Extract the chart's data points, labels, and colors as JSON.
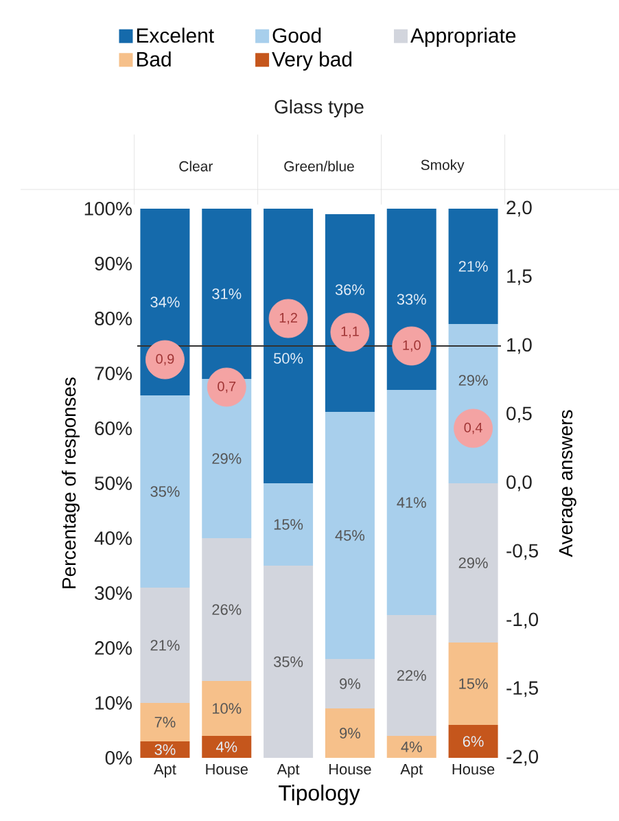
{
  "chart_data": {
    "type": "bar",
    "stacked": true,
    "title": "Glass type",
    "xlabel": "Tipology",
    "ylabel": "Percentage of responses",
    "y2label": "Average answers",
    "categories": [
      "Apt",
      "House",
      "Apt",
      "House",
      "Apt",
      "House"
    ],
    "annotations": [
      "Clear",
      "Green/blue",
      "Smoky"
    ],
    "series": [
      {
        "name": "Very bad",
        "color": "#c5561c",
        "values": [
          3,
          4,
          0,
          0,
          0,
          6
        ],
        "value_labels": [
          "3%",
          "4%",
          null,
          null,
          null,
          "6%"
        ]
      },
      {
        "name": "Bad",
        "color": "#f6c08a",
        "values": [
          7,
          10,
          0,
          9,
          4,
          15
        ],
        "value_labels": [
          "7%",
          "10%",
          null,
          "9%",
          "4%",
          "15%"
        ]
      },
      {
        "name": "Appropriate",
        "color": "#d2d5dd",
        "values": [
          21,
          26,
          35,
          9,
          22,
          29
        ],
        "value_labels": [
          "21%",
          "26%",
          "35%",
          "9%",
          "22%",
          "29%"
        ]
      },
      {
        "name": "Good",
        "color": "#a8cfec",
        "values": [
          35,
          29,
          15,
          45,
          41,
          29
        ],
        "value_labels": [
          "35%",
          "29%",
          "15%",
          "45%",
          "41%",
          "29%"
        ]
      },
      {
        "name": "Excelent",
        "color": "#156aab",
        "values": [
          34,
          31,
          50,
          36,
          33,
          21
        ],
        "value_labels": [
          "34%",
          "31%",
          "50%",
          "36%",
          "33%",
          "21%"
        ]
      },
      {
        "type": "scatter",
        "axis": "y2",
        "color": "#f4a3a3",
        "values": [
          0.9,
          0.7,
          1.2,
          1.1,
          1.0,
          0.4
        ],
        "value_labels": [
          "0,9",
          "0,7",
          "1,2",
          "1,1",
          "1,0",
          "0,4"
        ]
      }
    ],
    "ylim": [
      0,
      100
    ],
    "yticks": [
      {
        "value": 0,
        "label": "0%"
      },
      {
        "value": 10,
        "label": "10%"
      },
      {
        "value": 20,
        "label": "20%"
      },
      {
        "value": 30,
        "label": "30%"
      },
      {
        "value": 40,
        "label": "40%"
      },
      {
        "value": 50,
        "label": "50%"
      },
      {
        "value": 60,
        "label": "60%"
      },
      {
        "value": 70,
        "label": "70%"
      },
      {
        "value": 80,
        "label": "80%"
      },
      {
        "value": 90,
        "label": "90%"
      },
      {
        "value": 100,
        "label": "100%"
      }
    ],
    "y2lim": [
      -2,
      2
    ],
    "y2ticks": [
      {
        "value": -2,
        "label": "-2,0"
      },
      {
        "value": -1.5,
        "label": "-1,5"
      },
      {
        "value": -1,
        "label": "-1,0"
      },
      {
        "value": -0.5,
        "label": "-0,5"
      },
      {
        "value": 0,
        "label": "0,0"
      },
      {
        "value": 0.5,
        "label": "0,5"
      },
      {
        "value": 1,
        "label": "1,0"
      },
      {
        "value": 1.5,
        "label": "1,5"
      },
      {
        "value": 2,
        "label": "2,0"
      }
    ],
    "ref_lines": [
      {
        "axis": "y2",
        "value": 1,
        "color": "#333333"
      }
    ],
    "legend": "top"
  }
}
